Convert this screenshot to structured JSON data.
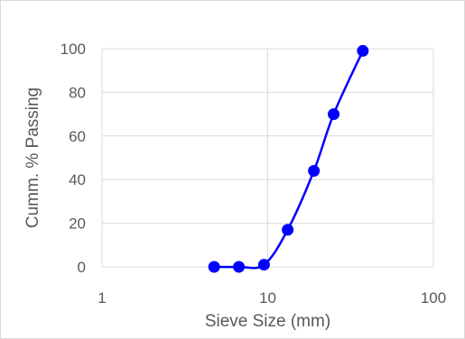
{
  "chart_data": {
    "type": "scatter",
    "xscale": "log",
    "title": "",
    "xlabel": "Sieve Size (mm)",
    "ylabel": "Cumm. % Passing",
    "xlim": [
      1,
      100
    ],
    "ylim": [
      0,
      100
    ],
    "x_ticks": [
      "1",
      "10",
      "100"
    ],
    "y_ticks": [
      "0",
      "20",
      "40",
      "60",
      "80",
      "100"
    ],
    "grid": "vertical major lines at decades; horizontal lines at 20-unit intervals",
    "legend": "none",
    "series": [
      {
        "color": "#0000ff",
        "marker": "circle",
        "line": "smooth",
        "points": [
          {
            "x": 4.75,
            "y": 0
          },
          {
            "x": 6.7,
            "y": 0
          },
          {
            "x": 9.5,
            "y": 1
          },
          {
            "x": 13.2,
            "y": 17
          },
          {
            "x": 19.0,
            "y": 44
          },
          {
            "x": 25.0,
            "y": 70
          },
          {
            "x": 37.5,
            "y": 99
          }
        ]
      }
    ]
  }
}
